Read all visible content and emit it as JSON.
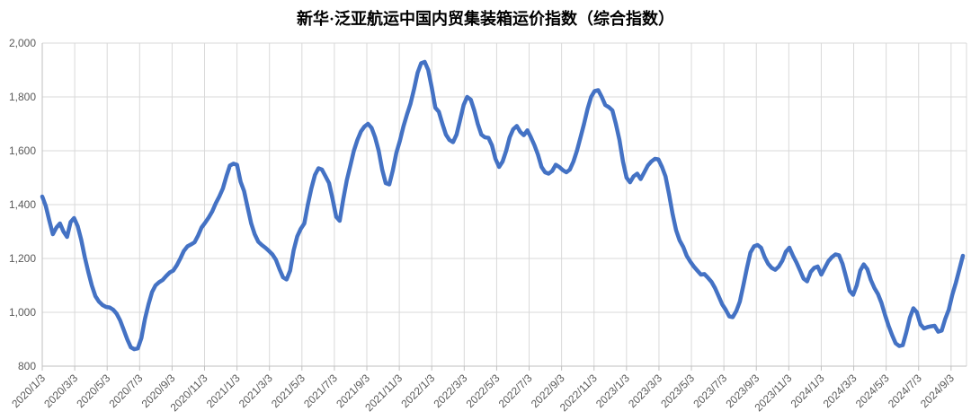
{
  "title": "新华·泛亚航运中国内贸集装箱运价指数（综合指数）",
  "chart_data": {
    "type": "line",
    "title": "新华·泛亚航运中国内贸集装箱运价指数（综合指数）",
    "xlabel": "",
    "ylabel": "",
    "legend": "none",
    "grid": true,
    "background": "#FFFFFF",
    "colors": {
      "line": "#4472C4",
      "gridline": "#D9D9D9",
      "axis": "#BFBFBF",
      "tick_label": "#595959",
      "title": "#000000"
    },
    "y_axis": {
      "min": 800,
      "max": 2000,
      "step": 200,
      "tick_labels": [
        "800",
        "1,000",
        "1,200",
        "1,400",
        "1,600",
        "1,800",
        "2,000"
      ]
    },
    "x_axis": {
      "tick_labels": [
        "2020/1/3",
        "2020/3/3",
        "2020/5/3",
        "2020/7/3",
        "2020/9/3",
        "2020/11/3",
        "2021/1/3",
        "2021/3/3",
        "2021/5/3",
        "2021/7/3",
        "2021/9/3",
        "2021/11/3",
        "2022/1/3",
        "2022/3/3",
        "2022/5/3",
        "2022/7/3",
        "2022/9/3",
        "2022/11/3",
        "2023/1/3",
        "2023/3/3",
        "2023/5/3",
        "2023/7/3",
        "2023/9/3",
        "2023/11/3",
        "2024/1/3",
        "2024/3/3",
        "2024/5/3",
        "2024/7/3",
        "2024/9/3"
      ],
      "tick_month_offsets": [
        0,
        2,
        4,
        6,
        8,
        10,
        12,
        14,
        16,
        18,
        20,
        22,
        24,
        26,
        28,
        30,
        32,
        34,
        36,
        38,
        40,
        42,
        44,
        46,
        48,
        50,
        52,
        54,
        56
      ],
      "axis_total_months": 56.95
    },
    "series": [
      {
        "name": "综合指数",
        "color": "#4472C4",
        "start_date": "2020-01-03",
        "end_date": "2024-09-25",
        "sampling": "approximately weekly",
        "points": 261,
        "series_total_months": 56.73,
        "values": [
          1430,
          1395,
          1340,
          1290,
          1315,
          1330,
          1300,
          1280,
          1335,
          1350,
          1320,
          1270,
          1205,
          1150,
          1100,
          1060,
          1040,
          1027,
          1020,
          1018,
          1010,
          995,
          970,
          935,
          900,
          870,
          863,
          866,
          905,
          975,
          1030,
          1075,
          1100,
          1112,
          1120,
          1135,
          1148,
          1155,
          1175,
          1200,
          1228,
          1245,
          1252,
          1260,
          1285,
          1315,
          1333,
          1352,
          1375,
          1405,
          1430,
          1460,
          1505,
          1545,
          1552,
          1548,
          1485,
          1450,
          1390,
          1330,
          1290,
          1262,
          1250,
          1240,
          1228,
          1215,
          1195,
          1160,
          1130,
          1122,
          1155,
          1230,
          1282,
          1310,
          1330,
          1400,
          1460,
          1510,
          1535,
          1530,
          1505,
          1480,
          1420,
          1355,
          1340,
          1420,
          1490,
          1545,
          1600,
          1640,
          1672,
          1690,
          1700,
          1685,
          1650,
          1600,
          1530,
          1480,
          1475,
          1527,
          1593,
          1637,
          1690,
          1735,
          1775,
          1830,
          1890,
          1925,
          1930,
          1900,
          1835,
          1760,
          1745,
          1700,
          1660,
          1640,
          1632,
          1660,
          1715,
          1770,
          1800,
          1790,
          1750,
          1700,
          1660,
          1650,
          1648,
          1620,
          1570,
          1540,
          1560,
          1600,
          1650,
          1680,
          1692,
          1670,
          1658,
          1676,
          1650,
          1620,
          1585,
          1540,
          1520,
          1515,
          1525,
          1548,
          1540,
          1528,
          1520,
          1530,
          1560,
          1600,
          1650,
          1700,
          1755,
          1800,
          1822,
          1825,
          1800,
          1770,
          1762,
          1750,
          1700,
          1640,
          1560,
          1500,
          1483,
          1505,
          1515,
          1495,
          1520,
          1545,
          1560,
          1570,
          1568,
          1540,
          1505,
          1440,
          1365,
          1305,
          1267,
          1243,
          1210,
          1188,
          1170,
          1155,
          1140,
          1142,
          1128,
          1113,
          1090,
          1060,
          1030,
          1010,
          985,
          982,
          1005,
          1040,
          1100,
          1165,
          1222,
          1245,
          1250,
          1240,
          1205,
          1180,
          1165,
          1158,
          1170,
          1192,
          1225,
          1240,
          1210,
          1185,
          1155,
          1125,
          1115,
          1150,
          1165,
          1170,
          1140,
          1165,
          1190,
          1205,
          1215,
          1212,
          1180,
          1130,
          1080,
          1065,
          1100,
          1155,
          1178,
          1160,
          1120,
          1090,
          1068,
          1035,
          990,
          950,
          915,
          885,
          875,
          878,
          925,
          980,
          1015,
          1000,
          955,
          940,
          945,
          948,
          950,
          928,
          932,
          975,
          1010,
          1065,
          1110,
          1160,
          1210
        ]
      }
    ]
  }
}
